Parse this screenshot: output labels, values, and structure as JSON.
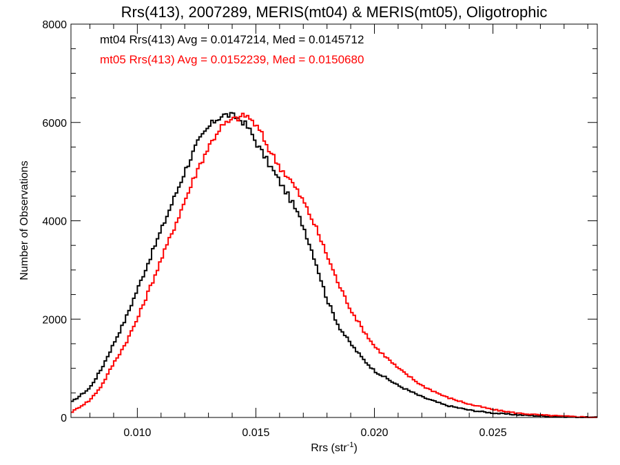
{
  "chart_data": {
    "type": "line",
    "title": "Rrs(413), 2007289, MERIS(mt04) & MERIS(mt05), Oligotrophic",
    "xlabel_main": "Rrs (str",
    "xlabel_sup": "-1",
    "xlabel_end": ")",
    "ylabel": "Number of Observations",
    "xlim": [
      0.0072,
      0.0294
    ],
    "ylim": [
      0,
      8000
    ],
    "x_ticks": [
      0.01,
      0.015,
      0.02,
      0.025
    ],
    "x_tick_labels": [
      "0.010",
      "0.015",
      "0.020",
      "0.025"
    ],
    "y_ticks": [
      0,
      2000,
      4000,
      6000,
      8000
    ],
    "y_tick_labels": [
      "0",
      "2000",
      "4000",
      "6000",
      "8000"
    ],
    "grid": false,
    "step_style": "histogram",
    "series": [
      {
        "name": "mt04",
        "color": "#000000",
        "annotation": "mt04 Rrs(413) Avg = 0.0147214, Med = 0.0145712",
        "x": [
          0.0072,
          0.008,
          0.0085,
          0.009,
          0.0095,
          0.01,
          0.0105,
          0.011,
          0.0115,
          0.012,
          0.0125,
          0.013,
          0.0133,
          0.0136,
          0.0139,
          0.0142,
          0.0145,
          0.0148,
          0.015,
          0.0155,
          0.016,
          0.0165,
          0.017,
          0.0175,
          0.018,
          0.0185,
          0.019,
          0.0195,
          0.02,
          0.021,
          0.022,
          0.023,
          0.024,
          0.025,
          0.026,
          0.027,
          0.028,
          0.0294
        ],
        "values": [
          300,
          600,
          1000,
          1500,
          2000,
          2600,
          3200,
          3800,
          4400,
          5000,
          5550,
          5900,
          6050,
          6150,
          6150,
          6100,
          6000,
          5800,
          5600,
          5200,
          4800,
          4400,
          3900,
          3200,
          2400,
          1850,
          1500,
          1200,
          950,
          650,
          420,
          250,
          150,
          90,
          55,
          30,
          15,
          0
        ]
      },
      {
        "name": "mt05",
        "color": "#ff0000",
        "annotation": "mt05 Rrs(413) Avg = 0.0152239, Med = 0.0150680",
        "x": [
          0.0072,
          0.008,
          0.0085,
          0.009,
          0.0095,
          0.01,
          0.0105,
          0.011,
          0.0115,
          0.012,
          0.0125,
          0.013,
          0.0135,
          0.014,
          0.0143,
          0.0146,
          0.0149,
          0.0152,
          0.0155,
          0.016,
          0.0165,
          0.017,
          0.0175,
          0.018,
          0.0185,
          0.019,
          0.0195,
          0.02,
          0.021,
          0.022,
          0.023,
          0.024,
          0.025,
          0.026,
          0.027,
          0.028,
          0.0294
        ],
        "values": [
          100,
          350,
          650,
          1100,
          1500,
          2000,
          2600,
          3200,
          3800,
          4400,
          5000,
          5500,
          5900,
          6050,
          6100,
          6150,
          6000,
          5800,
          5500,
          5100,
          4800,
          4400,
          3900,
          3300,
          2700,
          2200,
          1800,
          1450,
          1000,
          650,
          420,
          270,
          160,
          90,
          50,
          25,
          0
        ]
      }
    ]
  }
}
